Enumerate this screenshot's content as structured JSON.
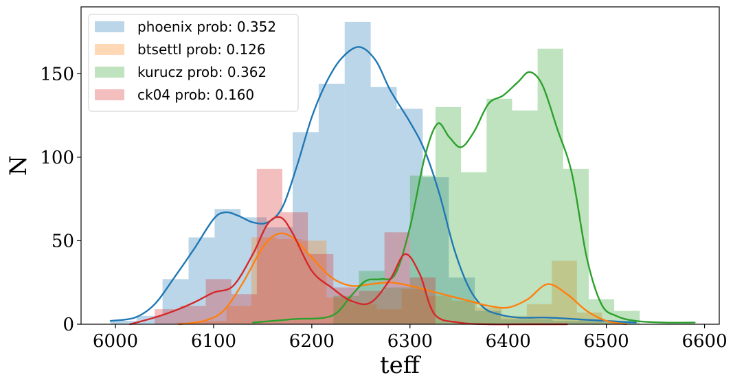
{
  "chart_data": {
    "type": "bar",
    "xlabel": "teff",
    "ylabel": "N",
    "xlim": [
      5965,
      6615
    ],
    "ylim": [
      0,
      190
    ],
    "xticks": [
      6000,
      6100,
      6200,
      6300,
      6400,
      6500,
      6600
    ],
    "yticks": [
      0,
      50,
      100,
      150
    ],
    "legend_position": "top-left",
    "grid": false,
    "series": [
      {
        "name": "phoenix prob: 0.352",
        "color": "#1f77b4",
        "bin_width": 26.5,
        "bins": [
          {
            "x0": 5995,
            "value": 2
          },
          {
            "x0": 6021.5,
            "value": 5
          },
          {
            "x0": 6048,
            "value": 27
          },
          {
            "x0": 6074.5,
            "value": 52
          },
          {
            "x0": 6101,
            "value": 69
          },
          {
            "x0": 6127.5,
            "value": 64
          },
          {
            "x0": 6154,
            "value": 58
          },
          {
            "x0": 6180.5,
            "value": 115
          },
          {
            "x0": 6207,
            "value": 144
          },
          {
            "x0": 6233.5,
            "value": 181
          },
          {
            "x0": 6260,
            "value": 142
          },
          {
            "x0": 6286.5,
            "value": 129
          },
          {
            "x0": 6313,
            "value": 88
          },
          {
            "x0": 6339.5,
            "value": 28
          },
          {
            "x0": 6366,
            "value": 8
          },
          {
            "x0": 6392.5,
            "value": 3
          },
          {
            "x0": 6419,
            "value": 3
          },
          {
            "x0": 6445.5,
            "value": 2
          },
          {
            "x0": 6472,
            "value": 3
          },
          {
            "x0": 6498.5,
            "value": 2
          }
        ],
        "kde_x": [
          5995,
          6020,
          6040,
          6060,
          6080,
          6100,
          6112,
          6125,
          6140,
          6155,
          6170,
          6185,
          6200,
          6215,
          6230,
          6248,
          6265,
          6280,
          6300,
          6315,
          6330,
          6345,
          6360,
          6375,
          6390,
          6410,
          6440,
          6470,
          6500,
          6530
        ],
        "kde_y": [
          2,
          4,
          12,
          28,
          45,
          63,
          67,
          65,
          61,
          61,
          70,
          95,
          124,
          145,
          159,
          166,
          158,
          140,
          121,
          104,
          78,
          45,
          22,
          10,
          6,
          4,
          4,
          3,
          2,
          1
        ]
      },
      {
        "name": "btsettl prob: 0.126",
        "color": "#ff7f0e",
        "bin_width": 25.5,
        "bins": [
          {
            "x0": 6062,
            "value": 1
          },
          {
            "x0": 6087.5,
            "value": 2
          },
          {
            "x0": 6113,
            "value": 11
          },
          {
            "x0": 6138.5,
            "value": 52
          },
          {
            "x0": 6164,
            "value": 51
          },
          {
            "x0": 6189.5,
            "value": 50
          },
          {
            "x0": 6215,
            "value": 16
          },
          {
            "x0": 6240.5,
            "value": 12
          },
          {
            "x0": 6266,
            "value": 9
          },
          {
            "x0": 6291.5,
            "value": 21
          },
          {
            "x0": 6317,
            "value": 17
          },
          {
            "x0": 6342.5,
            "value": 14
          },
          {
            "x0": 6368,
            "value": 10
          },
          {
            "x0": 6393.5,
            "value": 5
          },
          {
            "x0": 6419,
            "value": 12
          },
          {
            "x0": 6444.5,
            "value": 38
          },
          {
            "x0": 6470,
            "value": 7
          },
          {
            "x0": 6495.5,
            "value": 1
          }
        ],
        "kde_x": [
          6065,
          6090,
          6110,
          6130,
          6150,
          6165,
          6180,
          6200,
          6220,
          6240,
          6260,
          6280,
          6300,
          6320,
          6340,
          6360,
          6380,
          6400,
          6420,
          6440,
          6460,
          6480,
          6500,
          6520
        ],
        "kde_y": [
          0,
          2,
          8,
          25,
          46,
          54,
          52,
          40,
          28,
          23,
          24,
          25,
          23,
          20,
          17,
          14,
          11,
          10,
          15,
          24,
          18,
          8,
          2,
          0
        ]
      },
      {
        "name": "kurucz prob: 0.362",
        "color": "#2ca02c",
        "bin_width": 26,
        "bins": [
          {
            "x0": 6222,
            "value": 17
          },
          {
            "x0": 6248,
            "value": 32
          },
          {
            "x0": 6274,
            "value": 22
          },
          {
            "x0": 6300,
            "value": 89
          },
          {
            "x0": 6326,
            "value": 130
          },
          {
            "x0": 6352,
            "value": 91
          },
          {
            "x0": 6378,
            "value": 135
          },
          {
            "x0": 6404,
            "value": 128
          },
          {
            "x0": 6430,
            "value": 165
          },
          {
            "x0": 6456,
            "value": 93
          },
          {
            "x0": 6482,
            "value": 15
          },
          {
            "x0": 6508,
            "value": 8
          }
        ],
        "kde_x": [
          6140,
          6180,
          6220,
          6240,
          6255,
          6270,
          6285,
          6300,
          6315,
          6328,
          6340,
          6352,
          6365,
          6380,
          6395,
          6410,
          6422,
          6435,
          6450,
          6465,
          6480,
          6495,
          6510,
          6530,
          6560,
          6590
        ],
        "kde_y": [
          1,
          3,
          5,
          17,
          26,
          27,
          30,
          58,
          100,
          120,
          112,
          106,
          115,
          132,
          137,
          145,
          151,
          143,
          117,
          90,
          40,
          12,
          5,
          2,
          1,
          1
        ]
      },
      {
        "name": "ck04 prob: 0.160",
        "color": "#d62728",
        "bin_width": 26,
        "bins": [
          {
            "x0": 6040,
            "value": 9
          },
          {
            "x0": 6066,
            "value": 11
          },
          {
            "x0": 6092,
            "value": 27
          },
          {
            "x0": 6118,
            "value": 18
          },
          {
            "x0": 6144,
            "value": 93
          },
          {
            "x0": 6170,
            "value": 67
          },
          {
            "x0": 6196,
            "value": 42
          },
          {
            "x0": 6222,
            "value": 22
          },
          {
            "x0": 6248,
            "value": 20
          },
          {
            "x0": 6274,
            "value": 55
          },
          {
            "x0": 6300,
            "value": 28
          }
        ],
        "kde_x": [
          6015,
          6040,
          6060,
          6080,
          6100,
          6120,
          6140,
          6155,
          6168,
          6180,
          6200,
          6220,
          6240,
          6260,
          6280,
          6295,
          6310,
          6325,
          6350,
          6380,
          6420,
          6460
        ],
        "kde_y": [
          0,
          4,
          8,
          13,
          19,
          23,
          42,
          60,
          64,
          55,
          32,
          22,
          14,
          13,
          27,
          42,
          30,
          6,
          1,
          0,
          0,
          0
        ]
      }
    ]
  }
}
